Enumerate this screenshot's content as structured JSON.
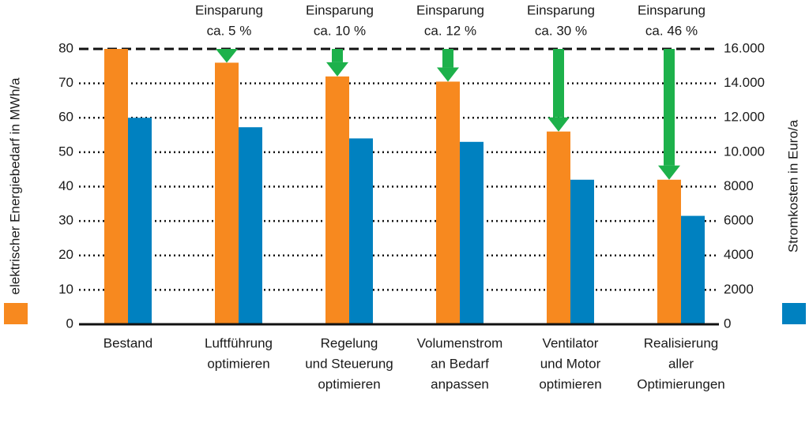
{
  "chart_data": {
    "type": "bar",
    "ylabel": "elektrischer Energiebedarf in MWh/a",
    "y2label": "Stromkosten in Euro/a",
    "categories": [
      [
        "Bestand"
      ],
      [
        "Luftführung",
        "optimieren"
      ],
      [
        "Regelung",
        "und Steuerung",
        "optimieren"
      ],
      [
        "Volumenstrom",
        "an Bedarf",
        "anpassen"
      ],
      [
        "Ventilator",
        "und Motor",
        "optimieren"
      ],
      [
        "Realisierung",
        "aller",
        "Optimierungen"
      ]
    ],
    "series": [
      {
        "color": "#f7891f",
        "values": [
          80,
          76,
          72,
          70.5,
          56,
          42
        ]
      },
      {
        "color": "#0081c0",
        "axis": "y2",
        "values": [
          12000,
          11450,
          10800,
          10600,
          8400,
          6300
        ]
      }
    ],
    "annotations": [
      null,
      [
        "Einsparung",
        "ca. 5 %"
      ],
      [
        "Einsparung",
        "ca. 10 %"
      ],
      [
        "Einsparung",
        "ca. 12 %"
      ],
      [
        "Einsparung",
        "ca. 30 %"
      ],
      [
        "Einsparung",
        "ca. 46 %"
      ]
    ],
    "arrow_color": "#1db14b",
    "ylim": [
      0,
      80
    ],
    "yticks": [
      0,
      10,
      20,
      30,
      40,
      50,
      60,
      70,
      80
    ],
    "y2lim": [
      0,
      16000
    ],
    "y2ticks": [
      0,
      2000,
      4000,
      6000,
      8000,
      {
        "value": 10000,
        "label": "10.000"
      },
      {
        "value": 12000,
        "label": "12.000"
      },
      {
        "value": 14000,
        "label": "14.000"
      },
      {
        "value": 16000,
        "label": "16.000"
      }
    ],
    "grid": true
  }
}
